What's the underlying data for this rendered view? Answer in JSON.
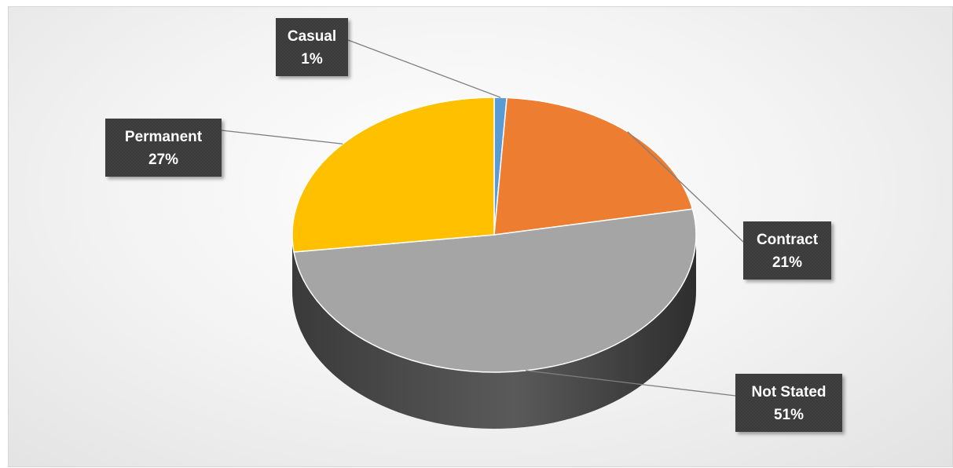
{
  "chart_data": {
    "type": "pie",
    "title": "",
    "style": "3d",
    "slices": [
      {
        "name": "Casual",
        "value": 1,
        "label": "1%",
        "color": "#5b9bd5"
      },
      {
        "name": "Contract",
        "value": 21,
        "label": "21%",
        "color": "#ed7d31"
      },
      {
        "name": "Not Stated",
        "value": 51,
        "label": "51%",
        "color": "#a5a5a5"
      },
      {
        "name": "Permanent",
        "value": 27,
        "label": "27%",
        "color": "#ffc000"
      }
    ],
    "legend": "none",
    "label_box_color": "#3b3b3b",
    "leader_line_color": "#7f7f7f"
  }
}
